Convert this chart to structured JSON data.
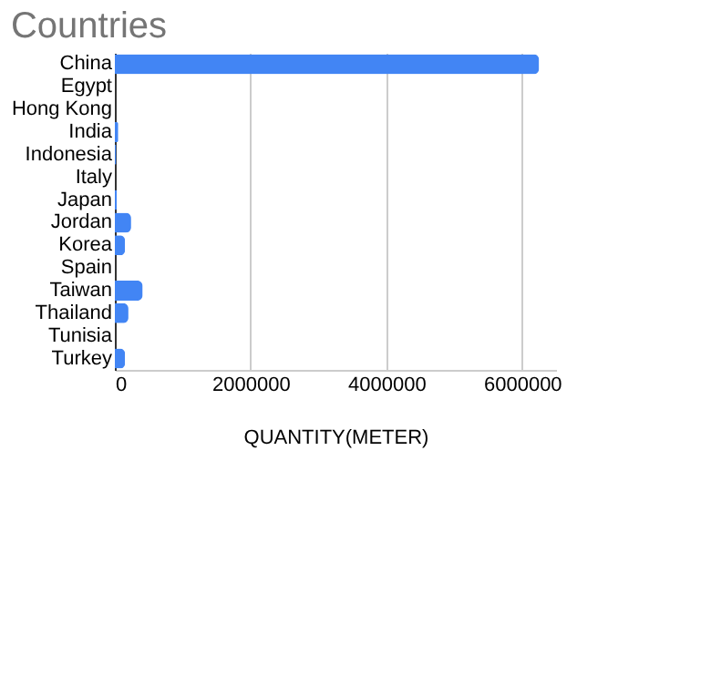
{
  "chart_data": {
    "type": "bar",
    "orientation": "horizontal",
    "title": "Countries",
    "xlabel": "QUANTITY(METER)",
    "categories": [
      "China",
      "Egypt",
      "Hong Kong",
      "India",
      "Indonesia",
      "Italy",
      "Japan",
      "Jordan",
      "Korea",
      "Spain",
      "Taiwan",
      "Thailand",
      "Tunisia",
      "Turkey"
    ],
    "values": [
      6250000,
      0,
      0,
      50000,
      20000,
      0,
      30000,
      240000,
      150000,
      0,
      410000,
      200000,
      0,
      150000
    ],
    "color": "#4285f4",
    "xlim": [
      0,
      6500000
    ],
    "xticks": [
      0,
      2000000,
      4000000,
      6000000
    ],
    "grid": "x"
  }
}
